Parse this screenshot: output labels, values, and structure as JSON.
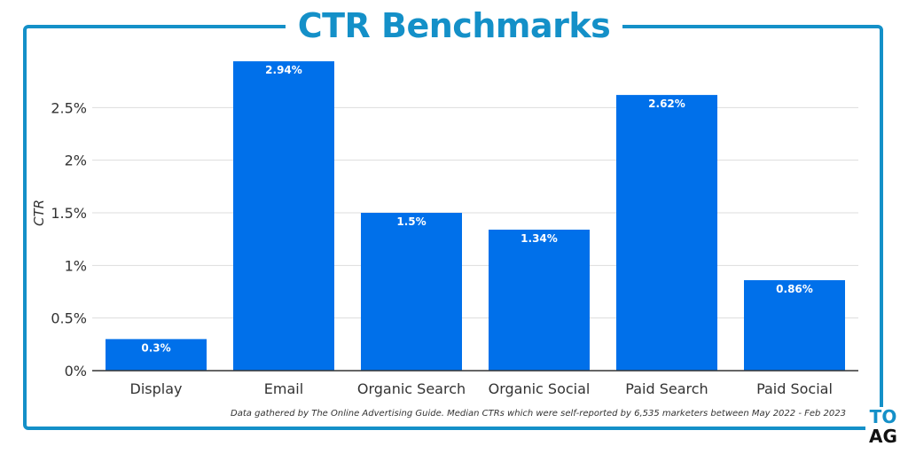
{
  "title": "CTR Benchmarks",
  "footnote": "Data gathered by The Online Advertising Guide. Median CTRs which were self-reported by 6,535 marketers between May 2022 - Feb 2023",
  "logo": {
    "line1": "TO",
    "line2": "AG"
  },
  "colors": {
    "bar": "#0070ea",
    "frame": "#1490c8",
    "grid": "#dddddd",
    "axis": "#333333"
  },
  "chart_data": {
    "type": "bar",
    "title": "CTR Benchmarks",
    "xlabel": "",
    "ylabel": "CTR",
    "categories": [
      "Display",
      "Email",
      "Organic Search",
      "Organic Social",
      "Paid Search",
      "Paid Social"
    ],
    "values": [
      0.3,
      2.94,
      1.5,
      1.34,
      2.62,
      0.86
    ],
    "data_labels": [
      "0.3%",
      "2.94%",
      "1.5%",
      "1.34%",
      "2.62%",
      "0.86%"
    ],
    "yticks": [
      0,
      0.5,
      1,
      1.5,
      2,
      2.5
    ],
    "ytick_labels": [
      "0%",
      "0.5%",
      "1%",
      "1.5%",
      "2%",
      "2.5%"
    ],
    "ylim": [
      0,
      3.0
    ],
    "grid": true,
    "legend": "none"
  }
}
